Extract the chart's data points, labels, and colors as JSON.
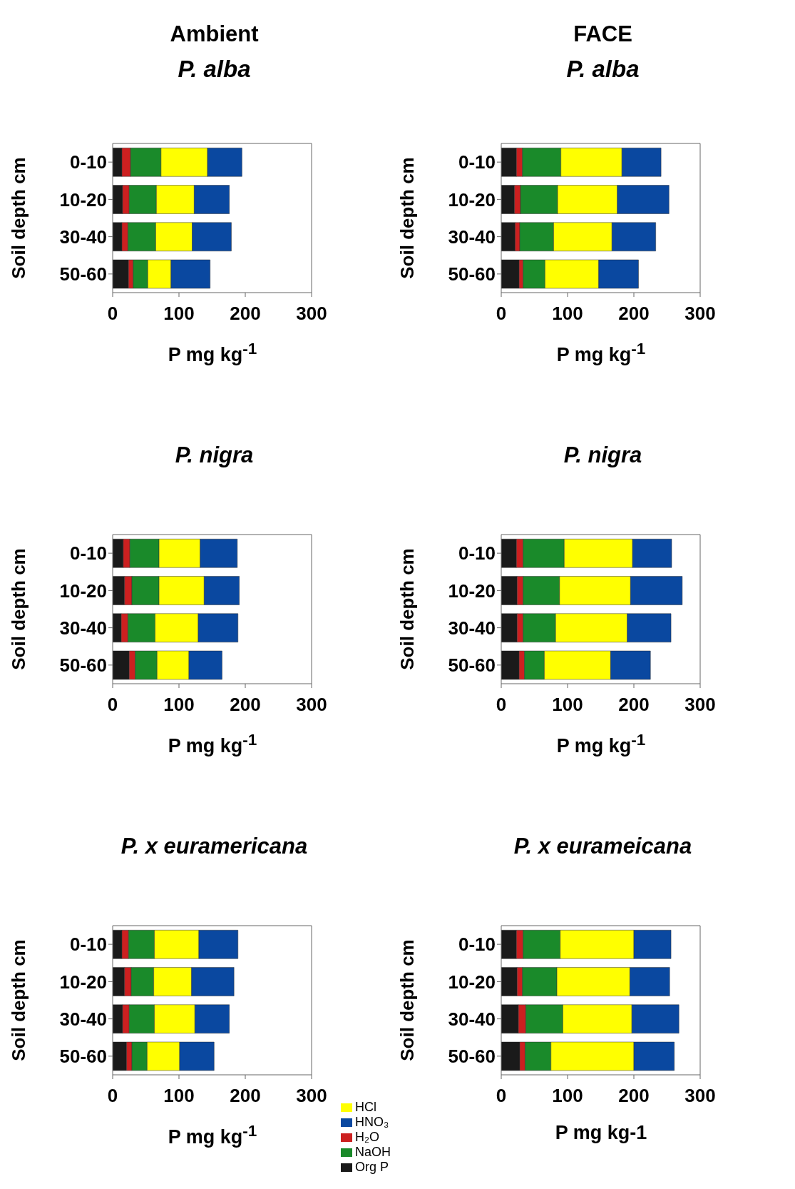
{
  "chart_data": [
    {
      "type": "bar",
      "orientation": "horizontal",
      "stacked": true,
      "title": "Ambient",
      "subtitle": "P. alba",
      "xlabel": "P mg kg$^{-1}$",
      "ylabel": "Soil depth cm",
      "categories": [
        "0-10",
        "10-20",
        "30-40",
        "50-60"
      ],
      "xlim": [
        0,
        300
      ],
      "xticks": [
        0,
        100,
        200,
        300
      ],
      "series": [
        {
          "color": "#1a1a1a",
          "values": [
            14,
            15,
            14,
            24
          ]
        },
        {
          "color": "#cc2020",
          "values": [
            13,
            10,
            9,
            7
          ]
        },
        {
          "color": "#1a8a2a",
          "values": [
            46,
            41,
            42,
            22
          ]
        },
        {
          "color": "#ffff00",
          "values": [
            70,
            57,
            55,
            35
          ]
        },
        {
          "color": "#0a48a0",
          "values": [
            52,
            53,
            59,
            59
          ]
        }
      ]
    },
    {
      "type": "bar",
      "orientation": "horizontal",
      "stacked": true,
      "title": "FACE",
      "subtitle": "P. alba",
      "xlabel": "P mg kg$^{-1}$",
      "ylabel": "Soil depth cm",
      "categories": [
        "0-10",
        "10-20",
        "30-40",
        "50-60"
      ],
      "xlim": [
        0,
        300
      ],
      "xticks": [
        0,
        100,
        200,
        300
      ],
      "series": [
        {
          "color": "#1a1a1a",
          "values": [
            23,
            20,
            21,
            27
          ]
        },
        {
          "color": "#cc2020",
          "values": [
            9,
            9,
            7,
            6
          ]
        },
        {
          "color": "#1a8a2a",
          "values": [
            58,
            56,
            51,
            33
          ]
        },
        {
          "color": "#ffff00",
          "values": [
            92,
            90,
            88,
            81
          ]
        },
        {
          "color": "#0a48a0",
          "values": [
            59,
            78,
            66,
            60
          ]
        }
      ]
    },
    {
      "type": "bar",
      "orientation": "horizontal",
      "stacked": true,
      "title": "P. nigra",
      "xlabel": "P mg kg$^{-1}$",
      "ylabel": "Soil depth cm",
      "categories": [
        "0-10",
        "10-20",
        "30-40",
        "50-60"
      ],
      "xlim": [
        0,
        300
      ],
      "xticks": [
        0,
        100,
        200,
        300
      ],
      "series": [
        {
          "color": "#1a1a1a",
          "values": [
            16,
            18,
            13,
            25
          ]
        },
        {
          "color": "#cc2020",
          "values": [
            10,
            11,
            10,
            9
          ]
        },
        {
          "color": "#1a8a2a",
          "values": [
            44,
            41,
            41,
            33
          ]
        },
        {
          "color": "#ffff00",
          "values": [
            62,
            68,
            65,
            48
          ]
        },
        {
          "color": "#0a48a0",
          "values": [
            56,
            53,
            60,
            50
          ]
        }
      ]
    },
    {
      "type": "bar",
      "orientation": "horizontal",
      "stacked": true,
      "title": "P. nigra",
      "xlabel": "P mg kg$^{-1}$",
      "ylabel": "Soil depth cm",
      "categories": [
        "0-10",
        "10-20",
        "30-40",
        "50-60"
      ],
      "xlim": [
        0,
        300
      ],
      "xticks": [
        0,
        100,
        200,
        300
      ],
      "series": [
        {
          "color": "#1a1a1a",
          "values": [
            23,
            24,
            24,
            27
          ]
        },
        {
          "color": "#cc2020",
          "values": [
            10,
            9,
            9,
            8
          ]
        },
        {
          "color": "#1a8a2a",
          "values": [
            62,
            55,
            49,
            30
          ]
        },
        {
          "color": "#ffff00",
          "values": [
            103,
            107,
            108,
            100
          ]
        },
        {
          "color": "#0a48a0",
          "values": [
            59,
            78,
            66,
            60
          ]
        }
      ]
    },
    {
      "type": "bar",
      "orientation": "horizontal",
      "stacked": true,
      "title": "P. x euramericana",
      "xlabel": "P mg kg$^{-1}$",
      "ylabel": "Soil depth cm",
      "categories": [
        "0-10",
        "10-20",
        "30-40",
        "50-60"
      ],
      "xlim": [
        0,
        300
      ],
      "xticks": [
        0,
        100,
        200,
        300
      ],
      "legend": "right",
      "series": [
        {
          "name": "Org P",
          "color": "#1a1a1a",
          "values": [
            14,
            18,
            15,
            21
          ]
        },
        {
          "name": "H₂O",
          "color": "#cc2020",
          "values": [
            10,
            10,
            10,
            8
          ]
        },
        {
          "name": "NaOH",
          "color": "#1a8a2a",
          "values": [
            39,
            34,
            38,
            23
          ]
        },
        {
          "name": "HCl",
          "color": "#ffff00",
          "values": [
            67,
            57,
            61,
            49
          ]
        },
        {
          "name": "HNO₃",
          "color": "#0a48a0",
          "values": [
            59,
            64,
            52,
            52
          ]
        }
      ]
    },
    {
      "type": "bar",
      "orientation": "horizontal",
      "stacked": true,
      "title": "P. x eurameicana",
      "xlabel": "P mg kg-1",
      "ylabel": "Soil depth cm",
      "categories": [
        "0-10",
        "10-20",
        "30-40",
        "50-60"
      ],
      "xlim": [
        0,
        300
      ],
      "xticks": [
        0,
        100,
        200,
        300
      ],
      "series": [
        {
          "color": "#1a1a1a",
          "values": [
            23,
            24,
            26,
            28
          ]
        },
        {
          "color": "#cc2020",
          "values": [
            10,
            8,
            11,
            8
          ]
        },
        {
          "color": "#1a8a2a",
          "values": [
            56,
            52,
            56,
            39
          ]
        },
        {
          "color": "#ffff00",
          "values": [
            111,
            110,
            104,
            125
          ]
        },
        {
          "color": "#0a48a0",
          "values": [
            56,
            60,
            71,
            61
          ]
        }
      ]
    }
  ]
}
